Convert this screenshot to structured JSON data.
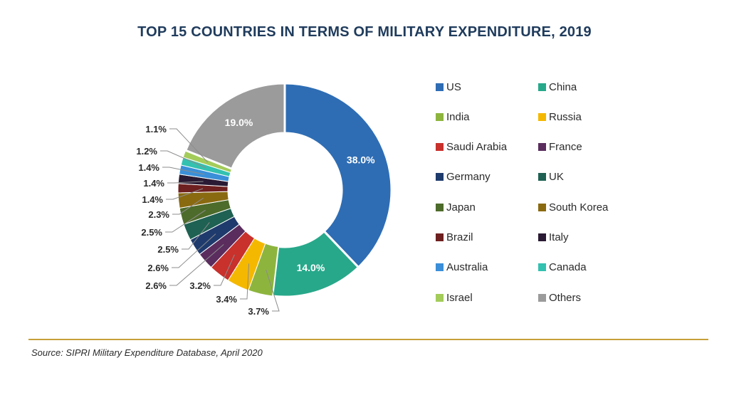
{
  "chart_data": {
    "type": "pie",
    "title": "TOP 15 COUNTRIES IN TERMS OF MILITARY EXPENDITURE, 2019",
    "categories": [
      "US",
      "China",
      "India",
      "Russia",
      "Saudi Arabia",
      "France",
      "Germany",
      "UK",
      "Japan",
      "South Korea",
      "Brazil",
      "Italy",
      "Australia",
      "Canada",
      "Israel",
      "Others"
    ],
    "values": [
      38.0,
      14.0,
      3.7,
      3.4,
      3.2,
      2.6,
      2.6,
      2.5,
      2.5,
      2.3,
      1.4,
      1.4,
      1.4,
      1.2,
      1.1,
      19.0
    ],
    "labels": [
      "38.0%",
      "14.0%",
      "3.7%",
      "3.4%",
      "3.2%",
      "2.6%",
      "2.6%",
      "2.5%",
      "2.5%",
      "2.3%",
      "1.4%",
      "1.4%",
      "1.4%",
      "1.2%",
      "1.1%",
      "19.0%"
    ],
    "colors": [
      "#2e6db4",
      "#27a88a",
      "#8db53e",
      "#f5b800",
      "#c8312c",
      "#5a2d5e",
      "#1f3b6d",
      "#1f6152",
      "#4d6b2a",
      "#8a6a10",
      "#6e1f1f",
      "#2a1a33",
      "#3a8fd8",
      "#33c1b0",
      "#a3cc5a",
      "#9b9b9b"
    ],
    "donut": true,
    "legend_position": "right"
  },
  "source": "Source: SIPRI Military Expenditure Database, April 2020"
}
